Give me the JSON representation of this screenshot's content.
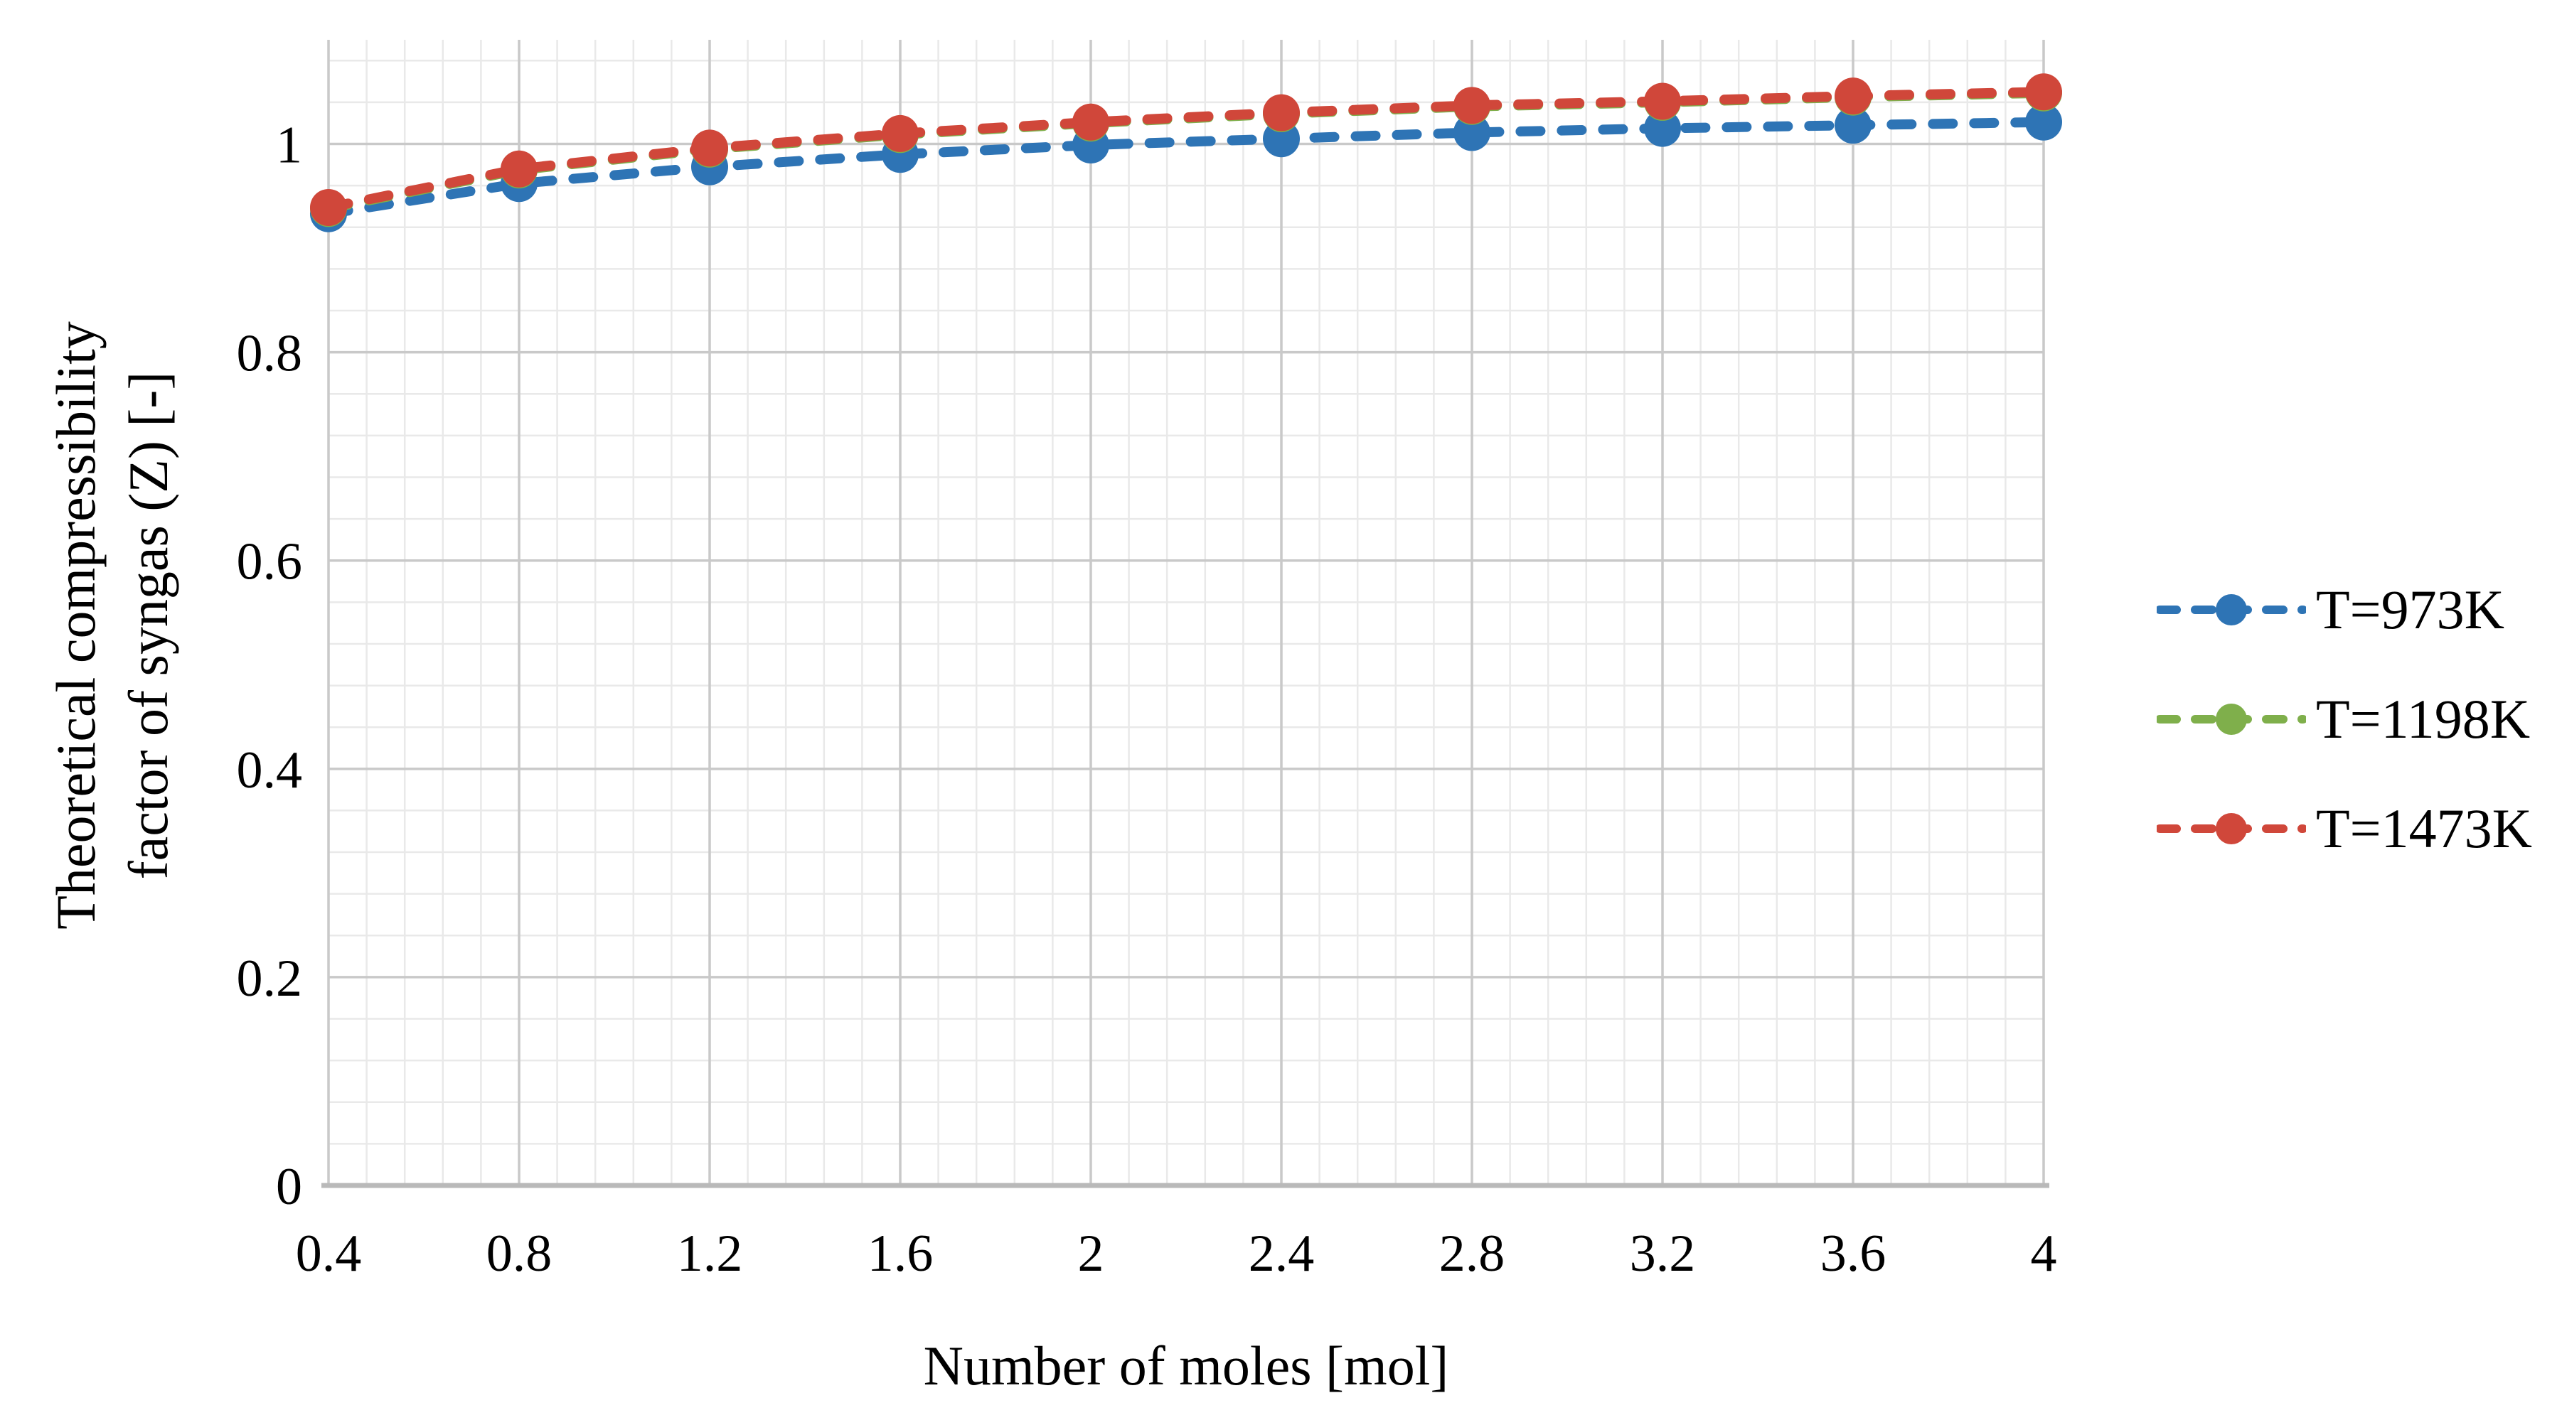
{
  "chart_data": {
    "type": "line",
    "title": "",
    "xlabel": "Number of moles [mol]",
    "ylabel_line1": "Theoretical compressibility",
    "ylabel_line2": "factor of syngas (Z) [-]",
    "x": [
      0.4,
      0.8,
      1.2,
      1.6,
      2.0,
      2.4,
      2.8,
      3.2,
      3.6,
      4.0
    ],
    "series": [
      {
        "name": "T=973K",
        "color": "#2E74B5",
        "line_style": "dashed",
        "marker": "circle",
        "values": [
          0.933,
          0.962,
          0.978,
          0.99,
          0.999,
          1.005,
          1.011,
          1.015,
          1.018,
          1.021
        ]
      },
      {
        "name": "T=1198K",
        "color": "#7FAF4B",
        "line_style": "dashed",
        "marker": "circle",
        "note": "almost completely hidden behind the T=1473K series in the plot",
        "values": [
          0.938,
          0.975,
          0.995,
          1.009,
          1.02,
          1.029,
          1.036,
          1.04,
          1.045,
          1.049
        ]
      },
      {
        "name": "T=1473K",
        "color": "#D0473A",
        "line_style": "dashed",
        "marker": "circle",
        "values": [
          0.939,
          0.976,
          0.996,
          1.01,
          1.021,
          1.03,
          1.037,
          1.041,
          1.046,
          1.05
        ]
      }
    ],
    "xlim": [
      0.4,
      4.0
    ],
    "ylim": [
      0,
      1.1
    ],
    "x_tick_values": [
      0.4,
      0.8,
      1.2,
      1.6,
      2.0,
      2.4,
      2.8,
      3.2,
      3.6,
      4.0
    ],
    "x_tick_labels": [
      "0.4",
      "0.8",
      "1.2",
      "1.6",
      "2",
      "2.4",
      "2.8",
      "3.2",
      "3.6",
      "4"
    ],
    "y_tick_values": [
      0,
      0.2,
      0.4,
      0.6,
      0.8,
      1.0
    ],
    "y_tick_labels": [
      "0",
      "0.2",
      "0.4",
      "0.6",
      "0.8",
      "1"
    ],
    "x_major_step": 0.4,
    "x_minor_step": 0.08,
    "y_major_step": 0.2,
    "y_minor_step": 0.04,
    "grid": "major and minor gridlines on",
    "legend_position": "right"
  },
  "colors": {
    "background": "#ffffff",
    "minor_grid": "#e9e9e9",
    "major_grid": "#c9c9c9",
    "axis_line": "#b9b9b9",
    "text": "#000000",
    "series_blue": "#2E74B5",
    "series_green": "#7FAF4B",
    "series_red": "#D0473A"
  }
}
